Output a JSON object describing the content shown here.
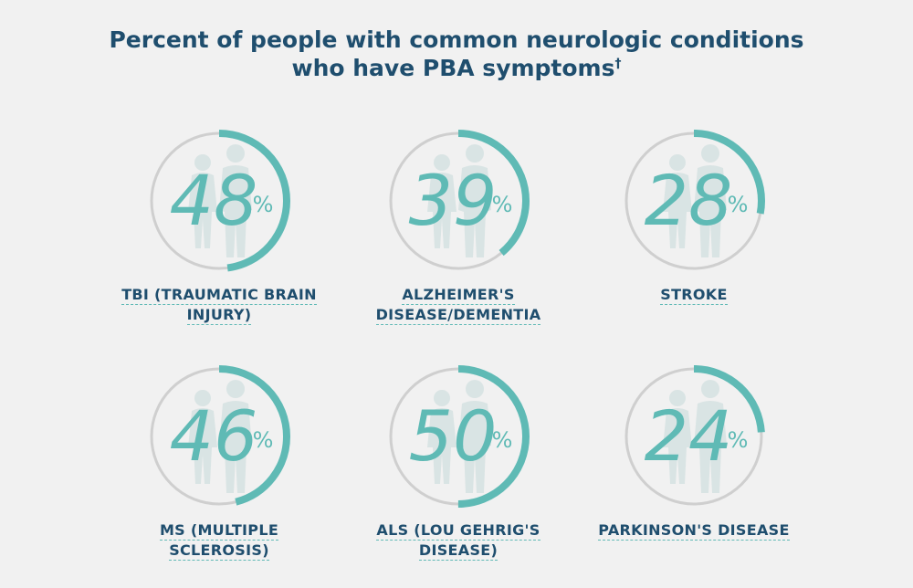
{
  "title_line1": "Percent of people with common neurologic conditions",
  "title_line2": "who have PBA symptoms",
  "title_mark": "†",
  "colors": {
    "accent": "#5fbab5",
    "track": "#cfcfcf",
    "silhouette": "#d9e4e4",
    "text": "#1f4e6e",
    "background": "#f1f1f1"
  },
  "chart_data": {
    "type": "pie",
    "unit": "%",
    "items": [
      {
        "label": "TBI (TRAUMATIC BRAIN INJURY)",
        "label_lines": [
          "TBI (TRAUMATIC BRAIN",
          "INJURY)"
        ],
        "value": 48
      },
      {
        "label": "ALZHEIMER'S DISEASE/DEMENTIA",
        "label_lines": [
          "ALZHEIMER'S",
          "DISEASE/DEMENTIA"
        ],
        "value": 39
      },
      {
        "label": "STROKE",
        "label_lines": [
          "STROKE"
        ],
        "value": 28
      },
      {
        "label": "MS (MULTIPLE SCLEROSIS)",
        "label_lines": [
          "MS (MULTIPLE",
          "SCLEROSIS)"
        ],
        "value": 46
      },
      {
        "label": "ALS (LOU GEHRIG'S DISEASE)",
        "label_lines": [
          "ALS (LOU GEHRIG'S",
          "DISEASE)"
        ],
        "value": 50
      },
      {
        "label": "PARKINSON'S DISEASE",
        "label_lines": [
          "PARKINSON'S DISEASE"
        ],
        "value": 24
      }
    ]
  }
}
